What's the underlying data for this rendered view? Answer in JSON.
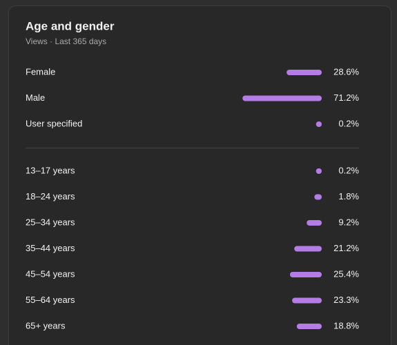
{
  "chart_data": [
    {
      "type": "bar",
      "title": "Age and gender",
      "subtitle": "Views · Last 365 days",
      "categories": [
        "Female",
        "Male",
        "User specified"
      ],
      "values": [
        28.6,
        71.2,
        0.2
      ],
      "value_labels": [
        "28.6%",
        "71.2%",
        "0.2%"
      ],
      "color": "#b67ce6"
    },
    {
      "type": "bar",
      "categories": [
        "13–17 years",
        "18–24 years",
        "25–34 years",
        "35–44 years",
        "45–54 years",
        "55–64 years",
        "65+ years"
      ],
      "values": [
        0.2,
        1.8,
        9.2,
        21.2,
        25.4,
        23.3,
        18.8
      ],
      "value_labels": [
        "0.2%",
        "1.8%",
        "9.2%",
        "21.2%",
        "25.4%",
        "23.3%",
        "18.8%"
      ],
      "color": "#b67ce6"
    }
  ]
}
